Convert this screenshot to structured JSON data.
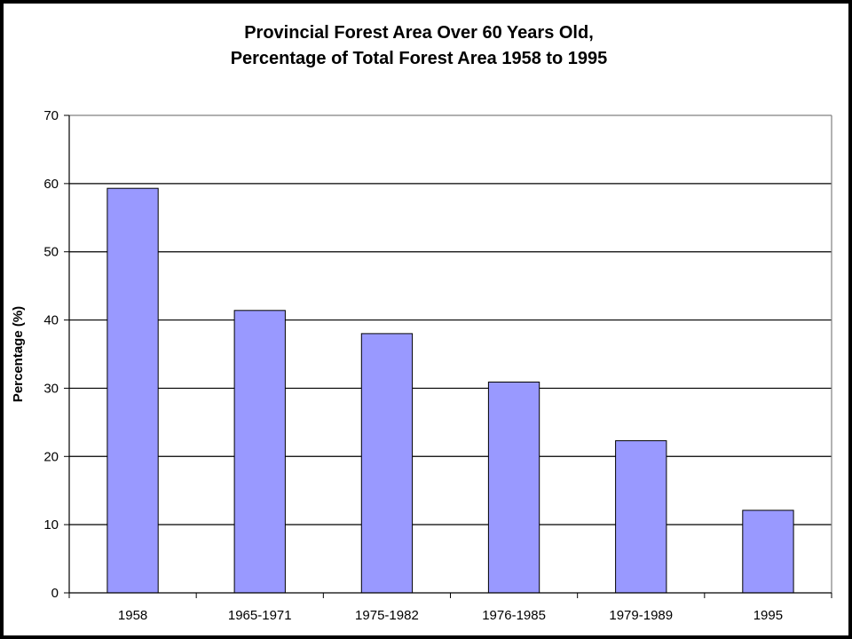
{
  "chart_data": {
    "type": "bar",
    "title": "Provincial Forest Area Over 60 Years Old,",
    "subtitle": "Percentage of Total Forest Area 1958 to 1995",
    "xlabel": "",
    "ylabel": "Percentage (%)",
    "categories": [
      "1958",
      "1965-1971",
      "1975-1982",
      "1976-1985",
      "1979-1989",
      "1995"
    ],
    "values": [
      59.3,
      41.4,
      38.0,
      30.9,
      22.3,
      12.1
    ],
    "ylim": [
      0,
      70
    ],
    "yticks": [
      0,
      10,
      20,
      30,
      40,
      50,
      60,
      70
    ],
    "grid": true,
    "legend": "none",
    "colors": {
      "bar_fill": "#9999ff",
      "bar_stroke": "#000000",
      "gridline": "#000000",
      "plot_border": "#808080",
      "background": "#ffffff",
      "outer_border": "#000000"
    }
  }
}
